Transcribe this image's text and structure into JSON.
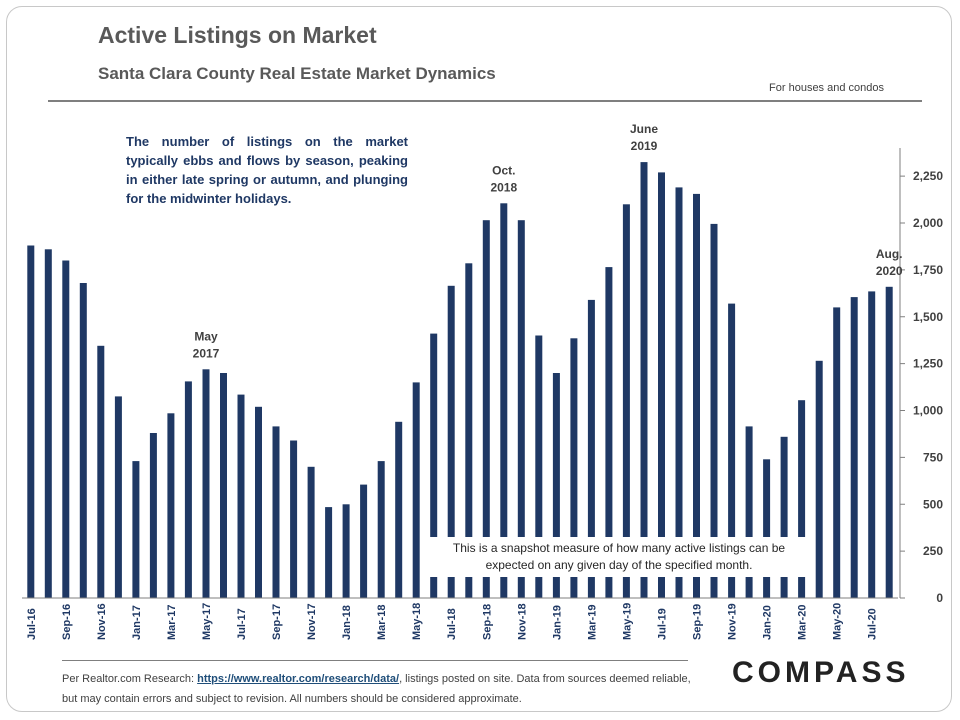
{
  "header": {
    "title": "Active Listings on Market",
    "subtitle": "Santa Clara County Real Estate Market Dynamics",
    "note": "For houses and condos"
  },
  "annotations": {
    "intro": "The number of listings on the market typically ebbs and flows by season, peaking in either late spring or autumn, and plunging for the midwinter holidays.",
    "snapshot": "This is a snapshot measure of how many active listings can be expected on any given day of the specified month."
  },
  "footer": {
    "source_prefix": "Per Realtor.com Research:",
    "source_link": "https://www.realtor.com/research/data/",
    "source_suffix": ", listings posted on site. Data from sources deemed reliable, but may contain errors and subject to revision. All numbers should be considered approximate.",
    "logo": "COMPASS"
  },
  "colors": {
    "bar": "#1f3864",
    "text": "#595959",
    "annotation": "#1f3864"
  },
  "chart_data": {
    "type": "bar",
    "title": "Active Listings on Market",
    "categories": [
      "Jul-16",
      "Aug-16",
      "Sep-16",
      "Oct-16",
      "Nov-16",
      "Dec-16",
      "Jan-17",
      "Feb-17",
      "Mar-17",
      "Apr-17",
      "May-17",
      "Jun-17",
      "Jul-17",
      "Aug-17",
      "Sep-17",
      "Oct-17",
      "Nov-17",
      "Dec-17",
      "Jan-18",
      "Feb-18",
      "Mar-18",
      "Apr-18",
      "May-18",
      "Jun-18",
      "Jul-18",
      "Aug-18",
      "Sep-18",
      "Oct-18",
      "Nov-18",
      "Dec-18",
      "Jan-19",
      "Feb-19",
      "Mar-19",
      "Apr-19",
      "May-19",
      "Jun-19",
      "Jul-19",
      "Aug-19",
      "Sep-19",
      "Oct-19",
      "Nov-19",
      "Dec-19",
      "Jan-20",
      "Feb-20",
      "Mar-20",
      "Apr-20",
      "May-20",
      "Jun-20",
      "Jul-20",
      "Aug-20"
    ],
    "values": [
      1880,
      1860,
      1800,
      1680,
      1345,
      1075,
      730,
      880,
      985,
      1155,
      1220,
      1200,
      1085,
      1020,
      915,
      840,
      700,
      485,
      500,
      605,
      730,
      940,
      1150,
      1410,
      1665,
      1785,
      2015,
      2105,
      2015,
      1400,
      1200,
      1385,
      1590,
      1765,
      2100,
      2325,
      2270,
      2190,
      2155,
      1995,
      1570,
      915,
      740,
      860,
      1055,
      1265,
      1550,
      1605,
      1635,
      1660
    ],
    "tick_labels": [
      "Jul-16",
      "Sep-16",
      "Nov-16",
      "Jan-17",
      "Mar-17",
      "May-17",
      "Jul-17",
      "Sep-17",
      "Nov-17",
      "Jan-18",
      "Mar-18",
      "May-18",
      "Jul-18",
      "Sep-18",
      "Nov-18",
      "Jan-19",
      "Mar-19",
      "May-19",
      "Jul-19",
      "Sep-19",
      "Nov-19",
      "Jan-20",
      "Mar-20",
      "May-20",
      "Jul-20"
    ],
    "ylim": [
      0,
      2400
    ],
    "yticks": [
      0,
      250,
      500,
      750,
      1000,
      1250,
      1500,
      1750,
      2000,
      2250
    ],
    "ytick_labels": [
      "0",
      "250",
      "500",
      "750",
      "1,000",
      "1,250",
      "1,500",
      "1,750",
      "2,000",
      "2,250"
    ],
    "y_axis_side": "right",
    "grid": false,
    "point_labels": [
      {
        "index": 10,
        "lines": [
          "May",
          "2017"
        ]
      },
      {
        "index": 27,
        "lines": [
          "Oct.",
          "2018"
        ]
      },
      {
        "index": 35,
        "lines": [
          "June",
          "2019"
        ]
      },
      {
        "index": 49,
        "lines": [
          "Aug.",
          "2020"
        ]
      }
    ]
  }
}
